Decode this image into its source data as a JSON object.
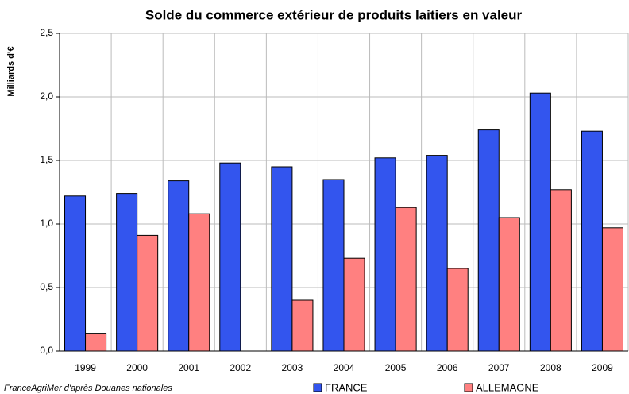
{
  "chart_data": {
    "type": "bar",
    "title": "Solde du commerce extérieur de produits laitiers en valeur",
    "y_label": "Milliards d'€",
    "source": "FranceAgriMer d'après Douanes nationales",
    "categories": [
      "1999",
      "2000",
      "2001",
      "2002",
      "2003",
      "2004",
      "2005",
      "2006",
      "2007",
      "2008",
      "2009"
    ],
    "series": [
      {
        "name": "FRANCE",
        "color": "#3355ee",
        "values": [
          1.22,
          1.24,
          1.34,
          1.48,
          1.45,
          1.35,
          1.52,
          1.54,
          1.74,
          2.03,
          1.73
        ]
      },
      {
        "name": "ALLEMAGNE",
        "color": "#ff8080",
        "values": [
          0.14,
          0.91,
          1.08,
          null,
          0.4,
          0.73,
          1.13,
          0.65,
          1.05,
          1.27,
          0.97
        ]
      }
    ],
    "ylim": [
      0,
      2.5
    ],
    "yticks": [
      {
        "value": 0,
        "label": "0,0"
      },
      {
        "value": 0.5,
        "label": "0,5"
      },
      {
        "value": 1,
        "label": "1,0"
      },
      {
        "value": 1.5,
        "label": "1,5"
      },
      {
        "value": 2,
        "label": "2,0"
      },
      {
        "value": 2.5,
        "label": "2,5"
      }
    ],
    "grid": true,
    "legend": "bottom"
  }
}
